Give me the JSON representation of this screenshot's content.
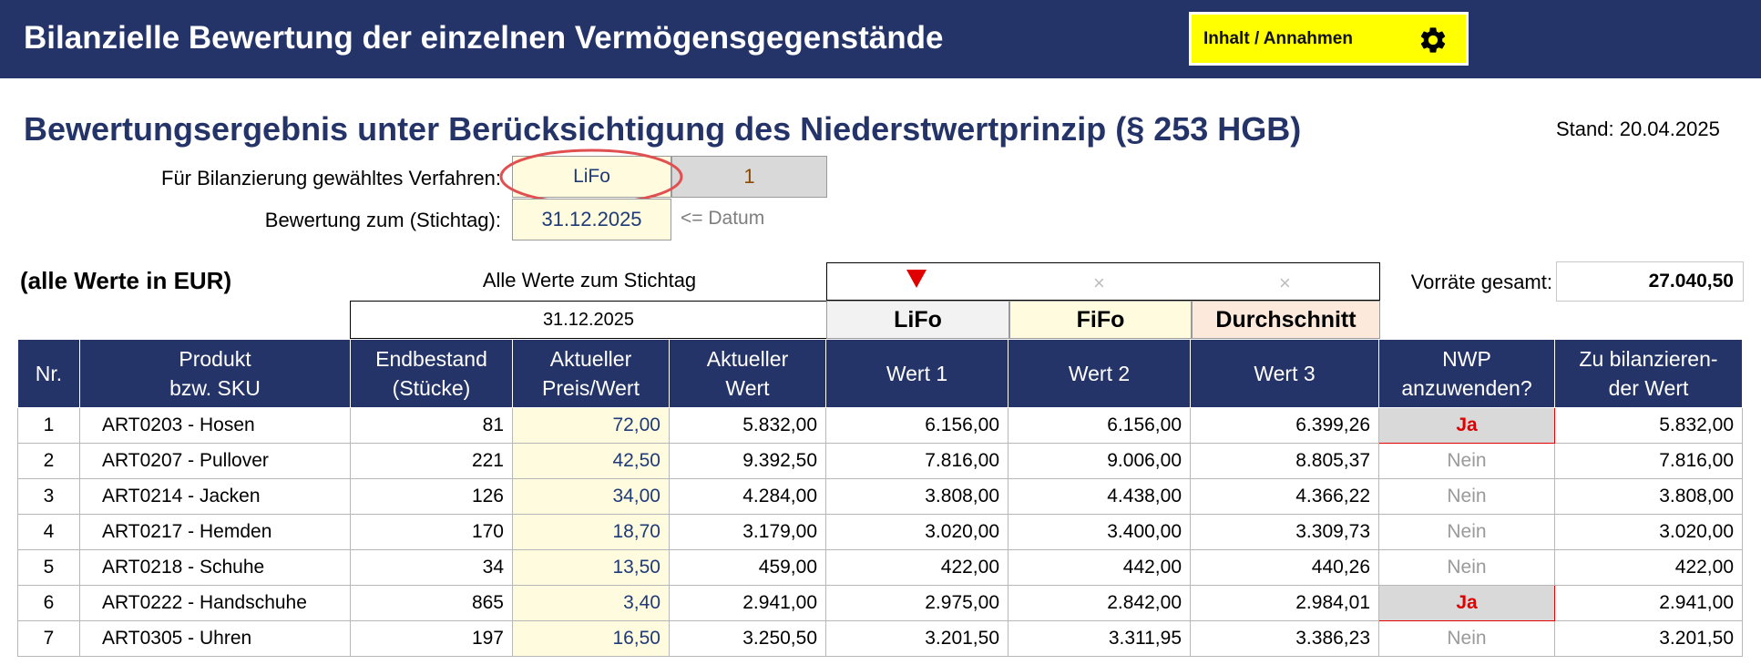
{
  "header": {
    "title": "Bilanzielle Bewertung der einzelnen Vermögensgegenstände",
    "nav_button_label": "Inhalt / Annahmen",
    "nav_button_icon": "gear-icon"
  },
  "subtitle": "Bewertungsergebnis unter Berücksichtigung des Niederstwertprinzip (§ 253 HGB)",
  "stand": "Stand: 20.04.2025",
  "form": {
    "method_label": "Für Bilanzierung gewähltes Verfahren:",
    "method_value": "LiFo",
    "method_index": "1",
    "date_label": "Bewertung zum (Stichtag):",
    "date_value": "31.12.2025",
    "date_hint": "<= Datum"
  },
  "unit_note": "(alle Werte in EUR)",
  "stichtag_label": "Alle Werte zum Stichtag",
  "stichtag_date": "31.12.2025",
  "selector": {
    "deselected_marks": [
      "×",
      "×"
    ]
  },
  "methods": [
    {
      "label": "LiFo",
      "bg": "#f2f2f2"
    },
    {
      "label": "FiFo",
      "bg": "#fffbdf"
    },
    {
      "label": "Durchschnitt",
      "bg": "#fde9dc"
    }
  ],
  "total": {
    "label": "Vorräte gesamt:",
    "value": "27.040,50"
  },
  "columns": [
    {
      "line1": "Nr.",
      "line2": ""
    },
    {
      "line1": "Produkt",
      "line2": "bzw. SKU"
    },
    {
      "line1": "Endbestand",
      "line2": "(Stücke)"
    },
    {
      "line1": "Aktueller",
      "line2": "Preis/Wert"
    },
    {
      "line1": "Aktueller",
      "line2": "Wert"
    },
    {
      "line1": "Wert 1",
      "line2": ""
    },
    {
      "line1": "Wert 2",
      "line2": ""
    },
    {
      "line1": "Wert 3",
      "line2": ""
    },
    {
      "line1": "NWP",
      "line2": "anzuwenden?"
    },
    {
      "line1": "Zu bilanzieren-",
      "line2": "der Wert"
    }
  ],
  "rows": [
    {
      "nr": "1",
      "produkt": "ART0203 - Hosen",
      "endbestand": "81",
      "preis": "72,00",
      "wert": "5.832,00",
      "w1": "6.156,00",
      "w2": "6.156,00",
      "w3": "6.399,26",
      "nwp": "Ja",
      "bilanz": "5.832,00"
    },
    {
      "nr": "2",
      "produkt": "ART0207 - Pullover",
      "endbestand": "221",
      "preis": "42,50",
      "wert": "9.392,50",
      "w1": "7.816,00",
      "w2": "9.006,00",
      "w3": "8.805,37",
      "nwp": "Nein",
      "bilanz": "7.816,00"
    },
    {
      "nr": "3",
      "produkt": "ART0214 - Jacken",
      "endbestand": "126",
      "preis": "34,00",
      "wert": "4.284,00",
      "w1": "3.808,00",
      "w2": "4.438,00",
      "w3": "4.366,22",
      "nwp": "Nein",
      "bilanz": "3.808,00"
    },
    {
      "nr": "4",
      "produkt": "ART0217 - Hemden",
      "endbestand": "170",
      "preis": "18,70",
      "wert": "3.179,00",
      "w1": "3.020,00",
      "w2": "3.400,00",
      "w3": "3.309,73",
      "nwp": "Nein",
      "bilanz": "3.020,00"
    },
    {
      "nr": "5",
      "produkt": "ART0218 - Schuhe",
      "endbestand": "34",
      "preis": "13,50",
      "wert": "459,00",
      "w1": "422,00",
      "w2": "442,00",
      "w3": "440,26",
      "nwp": "Nein",
      "bilanz": "422,00"
    },
    {
      "nr": "6",
      "produkt": "ART0222 - Handschuhe",
      "endbestand": "865",
      "preis": "3,40",
      "wert": "2.941,00",
      "w1": "2.975,00",
      "w2": "2.842,00",
      "w3": "2.984,01",
      "nwp": "Ja",
      "bilanz": "2.941,00"
    },
    {
      "nr": "7",
      "produkt": "ART0305 - Uhren",
      "endbestand": "197",
      "preis": "16,50",
      "wert": "3.250,50",
      "w1": "3.201,50",
      "w2": "3.311,95",
      "w3": "3.386,23",
      "nwp": "Nein",
      "bilanz": "3.201,50"
    }
  ],
  "colors": {
    "header_bg": "#253468",
    "nav_button_bg": "#ffff00",
    "price_bg": "#fffbdf",
    "ja_text": "#e00000",
    "highlight_ring": "#e05050"
  }
}
